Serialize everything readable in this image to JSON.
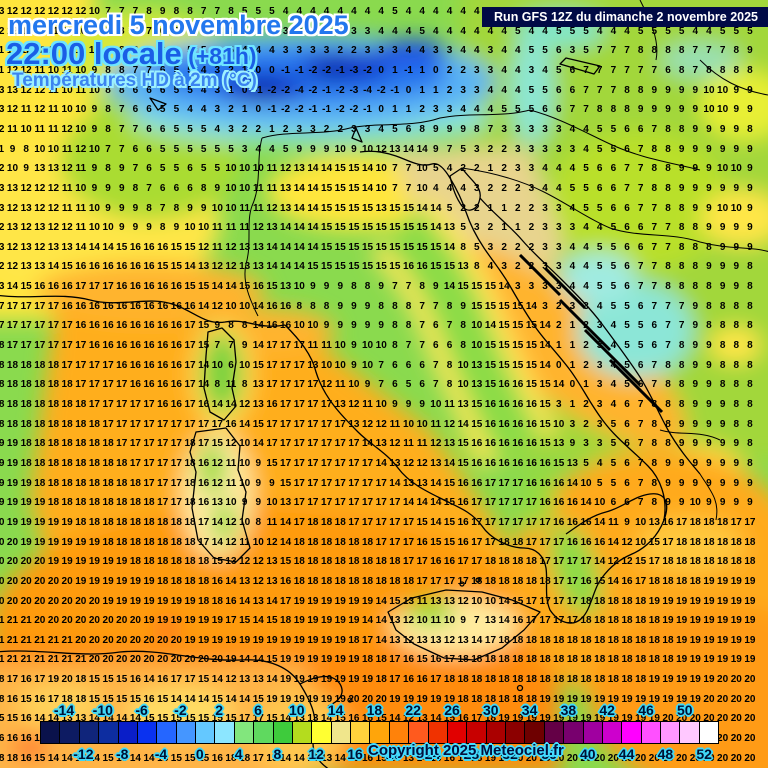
{
  "header": {
    "date_line": "mercredi 5 novembre 2025",
    "time_line": "22:00 locale",
    "time_suffix": " (+81h)",
    "variable_line": "Températures HD à 2m (°C)",
    "run_info": "Run GFS 12Z du dimanche 2 novembre 2025"
  },
  "footer": {
    "copyright": "Copyright 2025 Meteociel.fr"
  },
  "colors": {
    "header_date_blue": "#2277ee",
    "header_time_blue": "#1a5fe6",
    "header_outline_cyan": "#6fe4ff",
    "run_strip_bg": "#000a46",
    "run_strip_text": "#ffffff",
    "label_outline_cyan": "#3fd8f8",
    "grid_number_color": "#000000"
  },
  "colorbar": {
    "unit": "°C",
    "top_labels": [
      "-14",
      "-10",
      "-6",
      "-2",
      "2",
      "6",
      "10",
      "14",
      "18",
      "22",
      "26",
      "30",
      "34",
      "38",
      "42",
      "46",
      "50"
    ],
    "bottom_labels": [
      "-12",
      "-8",
      "-4",
      "0",
      "4",
      "8",
      "12",
      "16",
      "20",
      "24",
      "28",
      "32",
      "36",
      "40",
      "44",
      "48",
      "52"
    ],
    "cell_colors": [
      "#0a124b",
      "#0d1b62",
      "#10257b",
      "#0d2da0",
      "#0a1ec8",
      "#0a32f0",
      "#2566ff",
      "#4596ff",
      "#64c8ff",
      "#8ce6ff",
      "#82e67d",
      "#5fd95f",
      "#3ecb3c",
      "#b4dc1e",
      "#ffff32",
      "#f0e68c",
      "#ffd23c",
      "#ffa50a",
      "#ff820a",
      "#ff5a1e",
      "#f03200",
      "#e10000",
      "#c80000",
      "#aa0000",
      "#8c0000",
      "#6e0000",
      "#640046",
      "#78006e",
      "#a000a0",
      "#cd00cd",
      "#ff00ff",
      "#ff50ff",
      "#ff96ff",
      "#ffc8ff",
      "#ffffff"
    ]
  },
  "map_grid": {
    "rows": [
      "13 12 12 12 12 12 12 10 7 7 7 8 9 8 8 7 7 8 5 5 5 4 4 4 4 4 4 4 4 5 4 4 4 4 4 4 4 4 4 4 4 4 4 4 6 9 8 8 7 7 8 8 8 8 8 8",
      "12 12 12 12 11 11 10 10 8 8 8 7 6 6 5 5 5 4 4 4 3 3 3 3 3 4 3 3 4 4 4 5 4 4 4 4 4 4 5 4 4 5 5 5 4 4 4 5 5 5 5 4 4 5 5 5",
      "11 12 12 12 11 10 11 10 8 8 8 6 6 8 5 5 6 5 4 4 4 3 3 3 3 2 2 3 3 3 4 4 3 3 4 4 3 4 4 5 5 6 3 5 7 7 7 8 8 8 8 7 7 7 8 9",
      "11 12 12 11 10 11 10 9 8 8 7 7 6 5 5 4 3 2 1 0 0 -1 -1 -2 -2 -1 -3 -2 0 1 -1 1 0 2 2 3 3 4 4 3 4 5 6 7 7 7 7 7 7 6 8 7 8 8 8 8",
      "13 13 12 12 11 10 11 10 8 8 6 6 6 5 5 4 3 1 0 -1 -2 -2 -4 -2 -1 -2 -3 -4 -2 -1 0 1 1 2 3 3 4 4 4 5 5 6 6 7 7 7 8 8 9 9 9 9 10 10 9 9",
      "13 12 11 12 11 10 10 9 8 7 6 6 5 5 4 4 3 2 1 0 -1 -2 -2 -1 -1 -2 -2 -1 0 1 1 2 3 3 4 4 4 5 5 5 6 6 7 7 8 8 8 9 9 9 9 9 10 10 9 9",
      "12 11 10 11 11 12 10 9 8 7 7 6 6 5 5 5 4 3 2 2 1 2 3 3 2 2 3 3 4 5 6 8 9 9 9 8 7 3 3 3 3 3 4 4 5 5 6 6 7 8 8 9 9 9 9 8",
      "11 9 8 10 10 11 12 10 7 7 6 6 5 5 5 5 5 5 3 4 4 5 9 9 9 10 9 10 12 13 14 14 9 7 5 3 2 2 3 3 3 3 3 4 5 5 6 7 8 8 9 9 9 9 9 9",
      "12 10 9 13 13 12 11 9 8 9 7 6 5 5 6 5 5 10 10 10 11 12 13 14 14 15 15 14 10 7 7 10 5 4 2 2 1 2 3 3 4 4 4 5 6 6 7 7 8 8 9 9 9 10 10 9",
      "13 13 12 12 12 11 10 9 9 9 8 7 6 6 6 8 9 10 10 11 11 13 14 14 15 15 15 14 10 7 7 10 4 4 4 3 2 2 2 3 4 4 5 5 6 6 7 7 8 8 9 9 9 9 9 9",
      "13 12 13 12 12 11 11 10 9 9 9 8 7 8 9 9 10 10 11 11 12 13 14 14 15 15 15 15 13 15 15 14 14 5 2 2 1 1 2 2 3 3 4 5 5 6 6 7 7 8 8 9 9 10 10 9",
      "12 13 12 13 12 12 11 10 10 9 9 9 8 9 10 10 11 11 11 12 13 14 14 14 15 15 15 15 15 15 15 15 14 13 5 3 2 1 1 2 3 3 3 4 4 5 6 6 7 7 8 8 9 9 9 9",
      "13 12 13 12 13 13 14 14 14 15 16 16 16 15 15 12 11 12 13 13 14 14 14 14 15 15 15 15 15 15 15 15 15 14 8 5 3 2 2 2 3 3 4 4 5 5 6 6 7 7 8 8 8 9 9 9",
      "12 12 13 13 14 15 16 16 16 16 16 16 15 15 14 13 12 12 13 13 14 14 14 15 15 15 15 15 15 15 16 16 15 15 13 8 4 3 2 2 3 3 4 4 5 5 6 7 7 8 8 8 9 9 9 8",
      "13 14 15 16 16 16 17 17 17 16 16 16 16 16 15 15 14 14 15 16 15 13 10 9 9 9 8 8 9 7 7 8 9 14 15 15 15 14 3 3 3 3 4 4 5 5 6 7 7 8 8 8 8 9 9 8",
      "17 17 17 17 17 16 16 16 16 16 16 16 16 16 16 14 12 10 10 14 16 16 8 8 8 9 9 9 8 8 8 7 7 8 9 15 15 15 15 14 3 2 3 3 4 5 5 6 7 7 7 9 8 8 8 8",
      "17 17 17 17 17 17 16 16 16 16 16 16 16 16 17 15 9 8 8 14 16 16 10 10 9 9 9 9 9 8 8 7 6 7 8 10 14 15 15 15 14 2 1 2 3 4 5 5 6 7 7 9 8 8 8 8",
      "18 17 17 17 17 17 17 16 16 16 16 16 16 16 17 15 7 7 9 14 17 17 17 11 11 10 9 10 10 8 7 7 6 6 8 10 15 15 15 15 14 1 1 2 3 4 5 5 6 7 8 9 9 8 8 8",
      "18 18 18 18 18 17 17 17 17 16 16 16 16 16 17 14 10 6 10 15 17 17 17 13 10 10 9 10 7 6 6 6 7 8 10 13 15 15 15 15 14 0 1 2 3 4 5 6 7 8 8 9 9 8 8 8",
      "18 18 18 18 18 18 17 17 17 17 16 16 16 16 17 14 8 11 8 13 17 17 17 17 12 11 10 9 7 6 5 6 7 8 10 13 15 16 16 15 15 14 0 1 3 4 5 6 7 8 8 9 9 8 8 8",
      "18 18 18 18 18 18 18 17 17 17 17 17 16 16 17 16 14 14 12 13 16 17 17 17 17 13 12 11 10 9 9 9 10 11 13 15 16 16 16 16 15 3 1 2 3 4 6 7 8 8 8 9 9 9 8 8",
      "18 18 18 18 18 18 18 18 17 17 17 17 17 17 17 17 17 16 14 15 17 17 17 17 17 17 13 12 12 11 10 10 11 12 14 15 16 16 16 16 15 10 3 2 3 5 6 7 8 8 9 9 9 9 8 8",
      "19 19 18 18 18 18 18 18 18 17 17 17 17 17 18 17 15 12 10 14 17 17 17 17 17 17 17 14 13 12 11 11 12 13 15 16 16 16 16 16 15 13 9 3 3 5 6 7 8 8 9 9 9 9 9 8",
      "19 19 18 18 18 18 18 18 18 18 17 17 17 17 18 16 12 11 10 9 15 17 17 17 17 17 17 17 14 13 12 12 13 14 15 16 16 16 16 16 16 15 13 5 4 5 6 7 8 9 9 9 9 9 9 8",
      "19 19 19 18 18 18 18 18 18 18 18 17 17 17 18 16 12 11 10 9 9 15 17 17 17 17 17 17 17 14 13 13 14 15 16 16 17 17 17 16 16 16 14 10 5 5 6 7 8 9 9 9 9 9 9 9",
      "19 19 19 19 18 18 18 18 18 18 18 18 17 17 18 16 13 10 9 9 10 13 17 17 17 17 17 17 17 17 14 14 14 15 16 17 17 17 17 17 16 16 16 14 10 6 6 7 8 9 9 10 9 9 9 9",
      "20 19 19 19 19 19 18 18 18 18 18 18 18 18 18 17 14 12 10 8 11 14 17 18 18 18 17 17 17 17 17 15 14 15 16 17 17 17 17 17 17 16 16 16 14 11 9 10 13 16 17 18 18 18 17 17",
      "20 20 19 19 19 19 19 19 18 18 18 18 18 18 18 17 14 12 11 10 12 14 18 18 18 18 18 18 17 17 17 16 15 15 16 17 17 18 18 17 17 17 16 16 16 14 12 10 15 17 18 18 18 18 18 18",
      "20 20 20 20 19 19 19 19 19 19 18 18 18 18 18 18 15 13 12 12 13 15 18 18 18 18 18 18 18 18 17 17 16 16 17 17 18 18 18 18 17 17 17 17 14 12 12 15 17 18 18 18 18 18 18 18",
      "20 20 20 20 20 20 19 19 19 19 19 19 18 18 18 18 16 14 13 12 13 16 18 18 18 18 18 18 18 18 18 17 17 17 17 18 18 18 18 18 18 17 17 16 15 14 16 17 18 18 18 18 19 19 19 19",
      "20 20 20 20 20 20 20 20 19 19 19 19 19 19 19 18 18 16 14 13 14 17 19 19 19 19 19 19 14 15 13 11 13 13 12 10 10 14 15 17 17 17 17 18 18 18 18 18 19 19 19 19 19 19 19 19",
      "21 21 21 20 20 20 20 20 20 20 20 19 19 19 19 19 19 17 15 14 15 18 19 19 19 19 19 14 14 13 12 10 11 10 9 7 13 14 16 17 17 17 17 18 18 18 18 18 18 19 19 19 19 19 19 19",
      "21 21 21 21 21 21 20 20 20 20 20 20 20 20 19 19 19 19 19 19 19 19 19 19 19 19 18 17 14 13 12 13 13 12 13 14 17 18 18 18 18 18 18 18 18 18 18 18 18 18 19 19 19 19 19 19",
      "21 21 21 21 21 21 21 20 20 20 20 20 20 20 20 20 20 19 14 14 15 19 19 19 19 19 19 18 18 17 16 15 16 17 18 18 18 18 18 18 18 18 18 18 18 18 18 18 18 18 19 19 19 19 19 19",
      "18 17 16 17 19 20 18 15 15 15 16 14 16 17 17 15 14 12 13 13 14 19 19 19 19 19 19 19 18 17 16 16 17 18 18 18 18 18 18 18 18 18 18 18 18 18 18 18 19 19 19 19 19 20 20 20",
      "18 16 15 16 17 18 18 15 15 15 15 16 15 14 14 14 15 14 14 15 19 19 19 19 19 19 20 20 20 19 19 19 19 19 18 18 18 18 18 18 19 19 19 19 19 19 19 19 19 19 19 19 20 20 20 20",
      "15 15 16 14 14 13 13 14 14 14 14 15 15 15 15 15 15 15 17 17 15 14 13 13 14 15 16 16 15 14 12 13 14 15 16 17 18 19 19 19 19 19 19 19 19 19 19 19 19 20 20 20 20 20 20 20",
      "16 16 16 15 14 12 13 13 14 14 14 14 15 15 15 15 15 18 17 17 15 14 13 13 13 14 15 16 16 14 13 13 14 15 17 18 19 19 19 20 20 20 20 20 20 20 20 20 20 20 20 20 20 20 20 20",
      "18 18 16 15 14 14 14 14 15 15 14 14 15 15 15 15 16 18 18 17 15 14 14 13 13 14 15 16 15 14 13 14 15 16 17 18 19 19 20 20 20 20 20 20 20 20 20 20 20 20 20 20 20 20 20 20"
    ]
  }
}
